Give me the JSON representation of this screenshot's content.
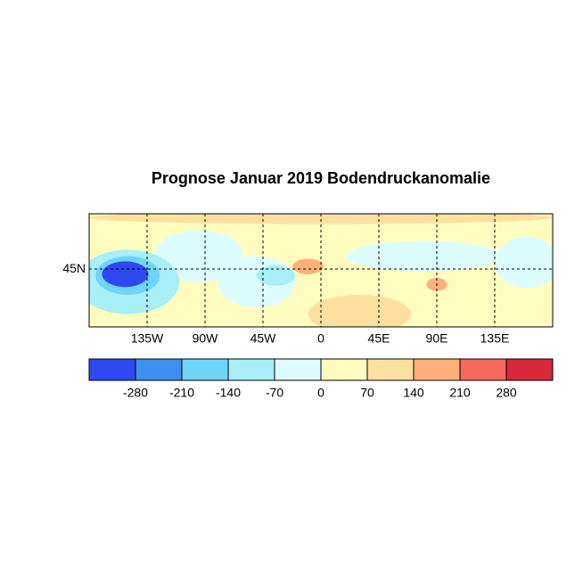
{
  "chart_data": {
    "type": "map",
    "title": "Prognose Januar 2019 Bodendruckanomalie",
    "xlim": [
      -180,
      180
    ],
    "ylim": [
      0,
      88
    ],
    "xticks": [
      {
        "value": -135,
        "label": "135W"
      },
      {
        "value": -90,
        "label": "90W"
      },
      {
        "value": -45,
        "label": "45W"
      },
      0,
      {
        "value": 45,
        "label": "45E"
      },
      {
        "value": 90,
        "label": "90E"
      },
      {
        "value": 135,
        "label": "135E"
      }
    ],
    "yticks": [
      {
        "value": 45,
        "label": "45N"
      }
    ],
    "grid": true,
    "colorbar": {
      "lim": [
        -350,
        350
      ],
      "ticks": [
        -280,
        -210,
        -140,
        -70,
        0,
        70,
        140,
        210,
        280
      ],
      "colors": [
        "#2f49f0",
        "#3e90f0",
        "#6fd4f8",
        "#a8eff8",
        "#dcfcfc",
        "#fffcc0",
        "#fde0a0",
        "#fdb07a",
        "#f46a5c",
        "#d8283a"
      ]
    },
    "anomalies": {
      "lon": [
        0,
        0,
        30,
        -50,
        -95,
        -150,
        -150,
        -152,
        -35,
        -10,
        80,
        90,
        160
      ],
      "lat": [
        44,
        85,
        10,
        35,
        55,
        35,
        40,
        41,
        40,
        47,
        55,
        33,
        50
      ],
      "rlon": [
        260,
        180,
        40,
        30,
        35,
        40,
        25,
        18,
        15,
        12,
        60,
        8,
        25
      ],
      "rlat": [
        70,
        5,
        15,
        20,
        20,
        25,
        15,
        10,
        8,
        6,
        12,
        5,
        20
      ],
      "values": [
        35,
        100,
        90,
        -40,
        -40,
        -100,
        -180,
        -300,
        -100,
        150,
        -60,
        160,
        -50
      ]
    }
  }
}
